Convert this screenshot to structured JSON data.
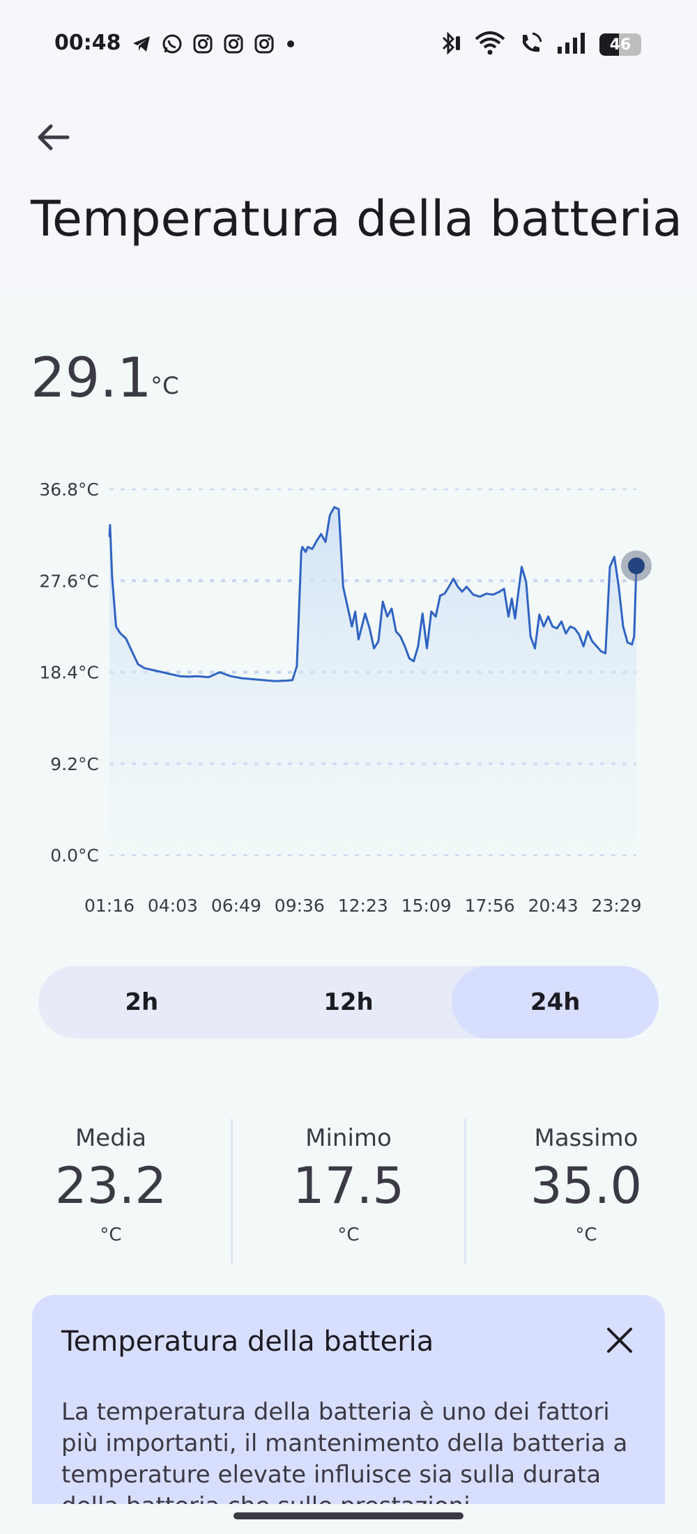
{
  "status_bar": {
    "time": "00:48",
    "left_icons": [
      "telegram-icon",
      "whatsapp-icon",
      "instagram-icon",
      "instagram-icon",
      "instagram-icon"
    ],
    "right_icons": [
      "bluetooth-icon",
      "wifi-icon",
      "wifi-call-icon",
      "signal-icon"
    ],
    "battery_level": "46"
  },
  "header": {
    "title": "Temperatura della batteria"
  },
  "current": {
    "value": "29.1",
    "unit": "°C"
  },
  "chart_data": {
    "type": "area",
    "ylim": [
      0,
      36.8
    ],
    "y_ticks": [
      "0.0°C",
      "9.2°C",
      "18.4°C",
      "27.6°C",
      "36.8°C"
    ],
    "x_ticks": [
      "01:16",
      "04:03",
      "06:49",
      "09:36",
      "12:23",
      "15:09",
      "17:56",
      "20:43",
      "23:29"
    ],
    "grid": "horizontal-dashed",
    "color": "#2f63c2",
    "series": [
      {
        "x": [
          0,
          0.03,
          0.12,
          0.3,
          0.5,
          0.75,
          1.0,
          1.3,
          1.6,
          2.0,
          2.4,
          2.8,
          3.2,
          3.6,
          4.0,
          4.5,
          5.0,
          5.5,
          6.0,
          6.5,
          7.0,
          7.5,
          8.0,
          8.3,
          8.5,
          8.7,
          8.75,
          8.9,
          9.0,
          9.2,
          9.4,
          9.6,
          9.8,
          10.0,
          10.2,
          10.4,
          10.6,
          10.8,
          10.9,
          11.0,
          11.15,
          11.3,
          11.6,
          11.8,
          12.0,
          12.2,
          12.4,
          12.6,
          12.8,
          13.0,
          13.2,
          13.4,
          13.6,
          13.8,
          14.0,
          14.2,
          14.4,
          14.6,
          14.8,
          15.0,
          15.2,
          15.4,
          15.6,
          15.8,
          16.0,
          16.2,
          16.5,
          16.8,
          17.1,
          17.4,
          17.7,
          17.9,
          18.1,
          18.25,
          18.4,
          18.55,
          18.7,
          18.9,
          19.1,
          19.3,
          19.5,
          19.7,
          19.9,
          20.1,
          20.3,
          20.5,
          20.7,
          20.9,
          21.1,
          21.3,
          21.5,
          21.7,
          21.9,
          22.1,
          22.3,
          22.5,
          22.7,
          22.9,
          23.1,
          23.3,
          23.5,
          23.7,
          23.8,
          23.9
        ],
        "values": [
          32.0,
          33.2,
          28.0,
          23.0,
          22.3,
          21.8,
          20.6,
          19.2,
          18.8,
          18.6,
          18.4,
          18.2,
          18.0,
          17.95,
          18.0,
          17.9,
          18.4,
          18.0,
          17.8,
          17.7,
          17.6,
          17.5,
          17.55,
          17.6,
          19.0,
          30.5,
          31.0,
          30.5,
          31.0,
          30.8,
          31.6,
          32.3,
          31.5,
          34.2,
          35.0,
          34.8,
          27.0,
          25.0,
          24.0,
          23.0,
          24.5,
          21.7,
          24.3,
          22.8,
          20.8,
          21.5,
          25.5,
          24.0,
          24.8,
          22.5,
          22.0,
          21.0,
          19.8,
          19.5,
          21.0,
          24.3,
          20.8,
          24.5,
          24.0,
          26.1,
          26.3,
          27.0,
          27.8,
          27.0,
          26.5,
          27.0,
          26.2,
          26.0,
          26.3,
          26.2,
          26.5,
          26.8,
          24.0,
          25.8,
          23.8,
          26.5,
          29.0,
          27.5,
          22.0,
          20.8,
          24.2,
          23.0,
          24.0,
          23.0,
          22.8,
          23.5,
          22.3,
          23.0,
          22.8,
          22.2,
          21.0,
          22.5,
          21.5,
          21.0,
          20.5,
          20.3,
          29.0,
          30.0,
          27.0,
          23.0,
          21.4,
          21.2,
          22.0,
          29.1
        ]
      }
    ],
    "current_marker_value": 29.1
  },
  "range_selector": {
    "options": [
      "2h",
      "12h",
      "24h"
    ],
    "selected": "24h"
  },
  "stats": {
    "average": {
      "label": "Media",
      "value": "23.2",
      "unit": "°C"
    },
    "minimum": {
      "label": "Minimo",
      "value": "17.5",
      "unit": "°C"
    },
    "maximum": {
      "label": "Massimo",
      "value": "35.0",
      "unit": "°C"
    }
  },
  "info_card": {
    "title": "Temperatura della batteria",
    "text": "La temperatura della batteria è uno dei fattori più importanti, il mantenimento della batteria a temperature elevate influisce sia sulla durata della batteria che sulle prestazioni"
  },
  "colors": {
    "accent": "#2f63c2",
    "selected_segment": "#d8defd",
    "card_background": "#d8defd"
  }
}
